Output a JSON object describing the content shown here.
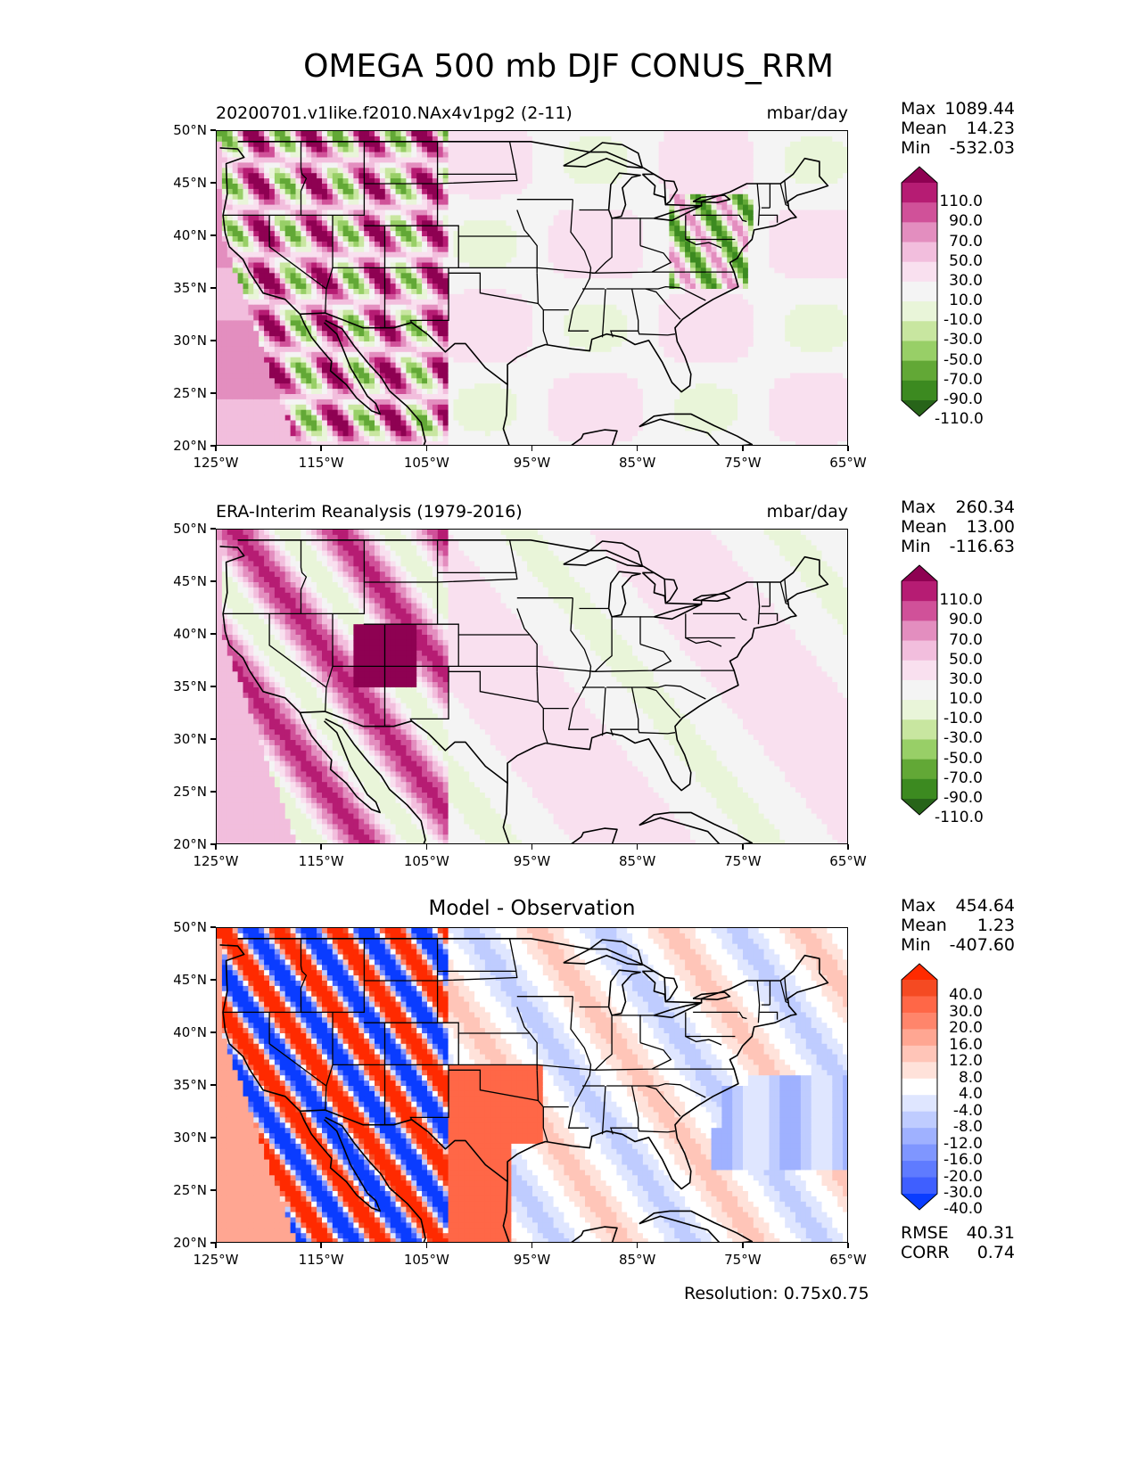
{
  "figure": {
    "title": "OMEGA 500 mb DJF CONUS_RRM",
    "resolution": "Resolution: 0.75x0.75"
  },
  "map_axes": {
    "lat_labels": [
      "50°N",
      "45°N",
      "40°N",
      "35°N",
      "30°N",
      "25°N",
      "20°N"
    ],
    "lon_labels": [
      "125°W",
      "115°W",
      "105°W",
      "95°W",
      "85°W",
      "75°W",
      "65°W"
    ]
  },
  "panels": [
    {
      "title": "20200701.v1like.f2010.NAx4v1pg2 (2-11)",
      "units": "mbar/day",
      "stats": {
        "max_label": "Max",
        "max": "1089.44",
        "mean_label": "Mean",
        "mean": "14.23",
        "min_label": "Min",
        "min": "-532.03"
      }
    },
    {
      "title": "ERA-Interim Reanalysis (1979-2016)",
      "units": "mbar/day",
      "stats": {
        "max_label": "Max",
        "max": "260.34",
        "mean_label": "Mean",
        "mean": "13.00",
        "min_label": "Min",
        "min": "-116.63"
      }
    },
    {
      "title": "Model - Observation",
      "units": "",
      "stats": {
        "max_label": "Max",
        "max": "454.64",
        "mean_label": "Mean",
        "mean": "1.23",
        "min_label": "Min",
        "min": "-407.60"
      },
      "rmse_label": "RMSE",
      "rmse": "40.31",
      "corr_label": "CORR",
      "corr": "0.74"
    }
  ],
  "colorbars": {
    "field": {
      "labels": [
        "110.0",
        "90.0",
        "70.0",
        "50.0",
        "30.0",
        "10.0",
        "-10.0",
        "-30.0",
        "-50.0",
        "-70.0",
        "-90.0",
        "-110.0"
      ],
      "colors": [
        "#8e0152",
        "#b61c73",
        "#d05199",
        "#e38ebf",
        "#f2bedd",
        "#f9e0ef",
        "#f4f4f4",
        "#e9f5d9",
        "#c8e6a0",
        "#98cf67",
        "#62a836",
        "#3c8a20",
        "#276419"
      ]
    },
    "diff": {
      "labels": [
        "40.0",
        "30.0",
        "20.0",
        "16.0",
        "12.0",
        "8.0",
        "4.0",
        "-4.0",
        "-8.0",
        "-12.0",
        "-16.0",
        "-20.0",
        "-30.0",
        "-40.0"
      ],
      "colors": [
        "#ff2a00",
        "#f54a22",
        "#ff6747",
        "#ff856b",
        "#ffa692",
        "#ffc5b8",
        "#ffe2da",
        "#ffffff",
        "#dfe6ff",
        "#bfccff",
        "#9fb1ff",
        "#7f96ff",
        "#5f7bff",
        "#3f5fff",
        "#0a3cff"
      ]
    }
  },
  "chart_data": {
    "type": "heatmap",
    "title": "OMEGA 500 mb DJF CONUS_RRM",
    "x_range": [
      -125,
      -65
    ],
    "y_range": [
      20,
      50
    ],
    "variable": "OMEGA 500 mb",
    "season": "DJF",
    "units": "mbar/day",
    "panels": [
      {
        "name": "20200701.v1like.f2010.NAx4v1pg2 (2-11)",
        "max": 1089.44,
        "mean": 14.23,
        "min": -532.03
      },
      {
        "name": "ERA-Interim Reanalysis (1979-2016)",
        "max": 260.34,
        "mean": 13.0,
        "min": -116.63
      },
      {
        "name": "Model - Observation",
        "max": 454.64,
        "mean": 1.23,
        "min": -407.6,
        "rmse": 40.31,
        "corr": 0.74
      }
    ],
    "field_levels": [
      -110,
      -90,
      -70,
      -50,
      -30,
      -10,
      10,
      30,
      50,
      70,
      90,
      110
    ],
    "diff_levels": [
      -40,
      -30,
      -20,
      -16,
      -12,
      -8,
      -4,
      4,
      8,
      12,
      16,
      20,
      30,
      40
    ]
  }
}
